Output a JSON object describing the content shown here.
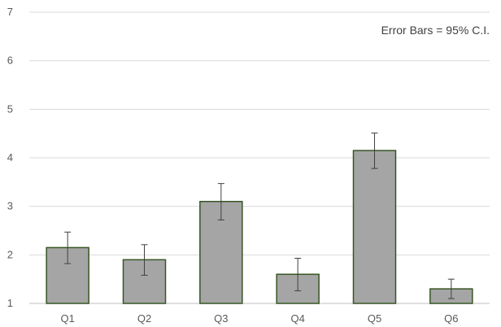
{
  "chart_data": {
    "type": "bar",
    "categories": [
      "Q1",
      "Q2",
      "Q3",
      "Q4",
      "Q5",
      "Q6"
    ],
    "values": [
      2.15,
      1.9,
      3.1,
      1.6,
      4.15,
      1.3
    ],
    "error_low": [
      1.82,
      1.58,
      2.72,
      1.26,
      3.78,
      1.1
    ],
    "error_high": [
      2.47,
      2.21,
      3.47,
      1.93,
      4.51,
      1.5
    ],
    "ylim": [
      1,
      7
    ],
    "yticks": [
      1,
      2,
      3,
      4,
      5,
      6,
      7
    ],
    "grid": true,
    "annotation": "Error Bars = 95% C.I.",
    "colors": {
      "bar_fill": "#a5a5a5",
      "bar_stroke": "#375623",
      "grid": "#d9d9d9",
      "axis": "#bfbfbf",
      "error_bar": "#404040"
    }
  }
}
